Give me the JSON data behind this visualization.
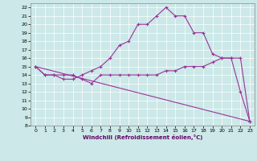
{
  "xlabel": "Windchill (Refroidissement éolien,°C)",
  "bg_color": "#cce8e8",
  "line_color": "#993399",
  "xlim": [
    -0.5,
    23.5
  ],
  "ylim": [
    8,
    22.5
  ],
  "yticks": [
    8,
    9,
    10,
    11,
    12,
    13,
    14,
    15,
    16,
    17,
    18,
    19,
    20,
    21,
    22
  ],
  "xticks": [
    0,
    1,
    2,
    3,
    4,
    5,
    6,
    7,
    8,
    9,
    10,
    11,
    12,
    13,
    14,
    15,
    16,
    17,
    18,
    19,
    20,
    21,
    22,
    23
  ],
  "line1_x": [
    0,
    1,
    2,
    3,
    4,
    5,
    6,
    7,
    8,
    9,
    10,
    11,
    12,
    13,
    14,
    15,
    16,
    17,
    18,
    19,
    20,
    21,
    22,
    23
  ],
  "line1_y": [
    15,
    14,
    14,
    13.5,
    13.5,
    14,
    14.5,
    15,
    16,
    17.5,
    18,
    20,
    20,
    21,
    22,
    21,
    21,
    19,
    19,
    16.5,
    16,
    16,
    12,
    8.5
  ],
  "line2_x": [
    0,
    1,
    2,
    3,
    4,
    5,
    6,
    7,
    8,
    9,
    10,
    11,
    12,
    13,
    14,
    15,
    16,
    17,
    18,
    19,
    20,
    21,
    22,
    23
  ],
  "line2_y": [
    15,
    14,
    14,
    14,
    14,
    13.5,
    13,
    14,
    14,
    14,
    14,
    14,
    14,
    14,
    14.5,
    14.5,
    15,
    15,
    15,
    15.5,
    16,
    16,
    16,
    8.5
  ],
  "line3_x": [
    0,
    23
  ],
  "line3_y": [
    15,
    8.5
  ]
}
